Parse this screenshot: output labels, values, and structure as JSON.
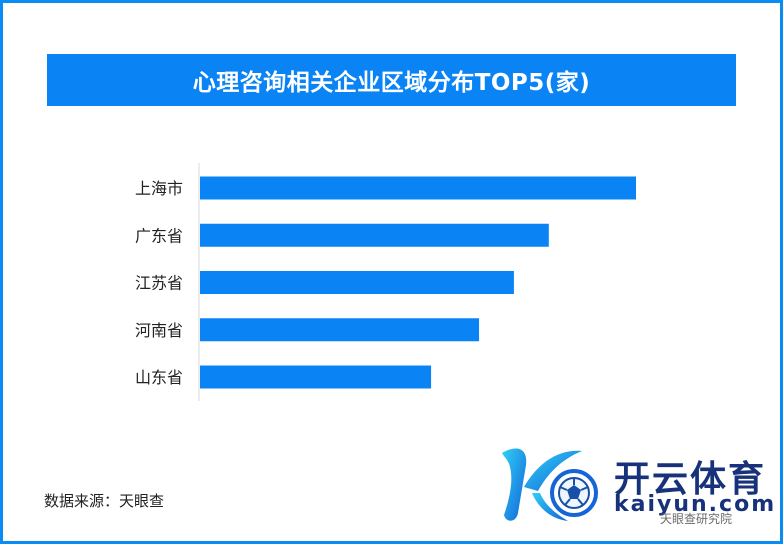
{
  "chart_data": {
    "type": "bar",
    "orientation": "horizontal",
    "title": "心理咨询相关企业区域分布TOP5(家)",
    "categories": [
      "上海市",
      "广东省",
      "江苏省",
      "河南省",
      "山东省"
    ],
    "values": [
      100,
      80,
      72,
      64,
      53
    ],
    "xlim": [
      0,
      100
    ],
    "grid": false,
    "legend": "none",
    "bar_color": "#0a84f5"
  },
  "source": "数据来源：天眼查",
  "watermark": {
    "brand": "开云体育",
    "domain": "kaiyun.com",
    "label": "天眼查研究院"
  },
  "colors": {
    "accent": "#0a84f5",
    "border": "#0a8cf2",
    "brand_navy": "#17327a"
  }
}
